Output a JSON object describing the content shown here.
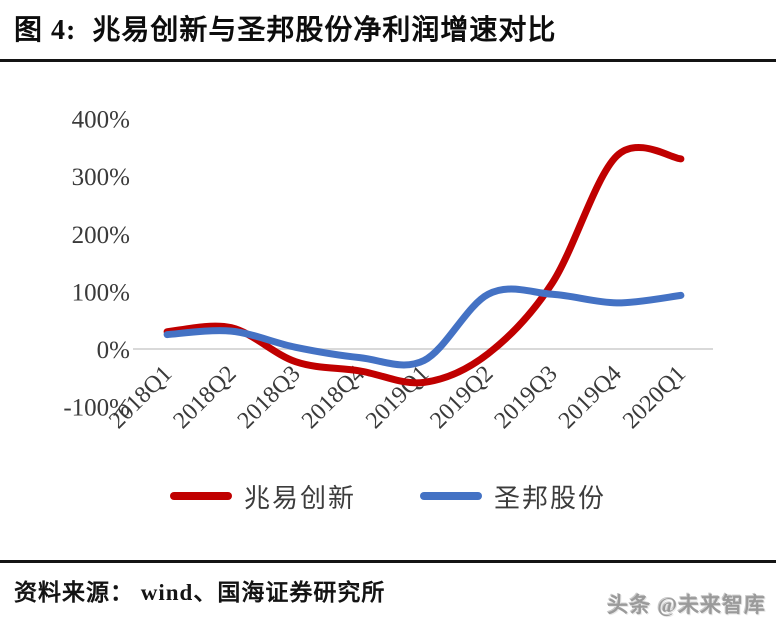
{
  "header": {
    "title": "图 4:  兆易创新与圣邦股份净利润增速对比"
  },
  "chart_data": {
    "type": "line",
    "title": "兆易创新与圣邦股份净利润增速对比",
    "categories": [
      "2018Q1",
      "2018Q2",
      "2018Q3",
      "2018Q4",
      "2019Q1",
      "2019Q2",
      "2019Q3",
      "2019Q4",
      "2020Q1"
    ],
    "series": [
      {
        "name": "兆易创新",
        "color": "#C00000",
        "values": [
          30,
          37,
          -22,
          -38,
          -58,
          -8,
          115,
          335,
          330
        ]
      },
      {
        "name": "圣邦股份",
        "color": "#4472C4",
        "values": [
          25,
          31,
          3,
          -15,
          -20,
          95,
          95,
          80,
          93
        ]
      }
    ],
    "xlabel": "",
    "ylabel": "",
    "ylim": [
      -100,
      400
    ],
    "yticks": [
      400,
      300,
      200,
      100,
      0,
      -100
    ],
    "ytick_suffix": "%",
    "grid": "zero-line-only",
    "x_tick_rotation": -45,
    "line_style": "smooth",
    "legend_position": "bottom"
  },
  "legend": {
    "items": [
      {
        "label": "兆易创新",
        "color": "#C00000"
      },
      {
        "label": "圣邦股份",
        "color": "#4472C4"
      }
    ]
  },
  "footer": {
    "source_label": "资料来源： wind、国海证券研究所"
  },
  "watermark": {
    "text": "头条 @未来智库"
  },
  "colors": {
    "accent_red": "#C00000",
    "line_blue": "#4472C4",
    "gridline": "#D9D9D9",
    "rule_black": "#141414",
    "axis_text": "#3a3a3a"
  }
}
